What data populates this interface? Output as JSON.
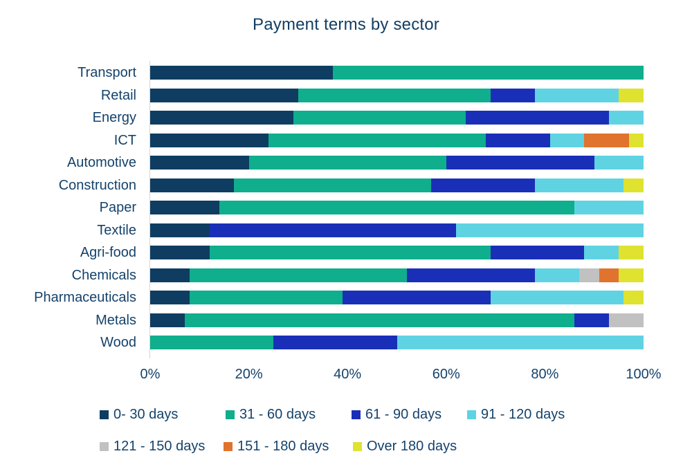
{
  "title": "Payment terms by sector",
  "chart_data": {
    "type": "bar",
    "orientation": "horizontal",
    "stacked": true,
    "unit": "percent",
    "title": "Payment terms by sector",
    "xlabel": "",
    "ylabel": "",
    "grid": false,
    "legend_position": "bottom",
    "x_axis": {
      "range": [
        0,
        100
      ],
      "ticks": [
        "0%",
        "20%",
        "40%",
        "60%",
        "80%",
        "100%"
      ]
    },
    "categories": [
      "Transport",
      "Retail",
      "Energy",
      "ICT",
      "Automotive",
      "Construction",
      "Paper",
      "Textile",
      "Agri-food",
      "Chemicals",
      "Pharmaceuticals",
      "Metals",
      "Wood"
    ],
    "series": [
      {
        "name": "0- 30 days",
        "color": "#0e3d61",
        "values": [
          37,
          30,
          29,
          24,
          20,
          17,
          14,
          12,
          12,
          8,
          8,
          7,
          0
        ]
      },
      {
        "name": "31 - 60 days",
        "color": "#0fae8d",
        "values": [
          63,
          39,
          35,
          44,
          40,
          40,
          72,
          0,
          57,
          44,
          31,
          79,
          25
        ]
      },
      {
        "name": "61 - 90 days",
        "color": "#1a2fb8",
        "values": [
          0,
          9,
          29,
          13,
          30,
          21,
          0,
          50,
          19,
          26,
          30,
          7,
          25
        ]
      },
      {
        "name": "91 - 120 days",
        "color": "#5fd3e2",
        "values": [
          0,
          17,
          7,
          7,
          10,
          18,
          14,
          38,
          7,
          9,
          27,
          0,
          50
        ]
      },
      {
        "name": "121 - 150 days",
        "color": "#c1c1c1",
        "values": [
          0,
          0,
          0,
          0,
          0,
          0,
          0,
          0,
          0,
          4,
          0,
          7,
          0
        ]
      },
      {
        "name": "151 - 180 days",
        "color": "#e0732d",
        "values": [
          0,
          0,
          0,
          9,
          0,
          0,
          0,
          0,
          0,
          4,
          0,
          0,
          0
        ]
      },
      {
        "name": "Over 180 days",
        "color": "#dfe22f",
        "values": [
          0,
          5,
          0,
          3,
          0,
          4,
          0,
          0,
          5,
          5,
          4,
          0,
          0
        ]
      }
    ]
  }
}
